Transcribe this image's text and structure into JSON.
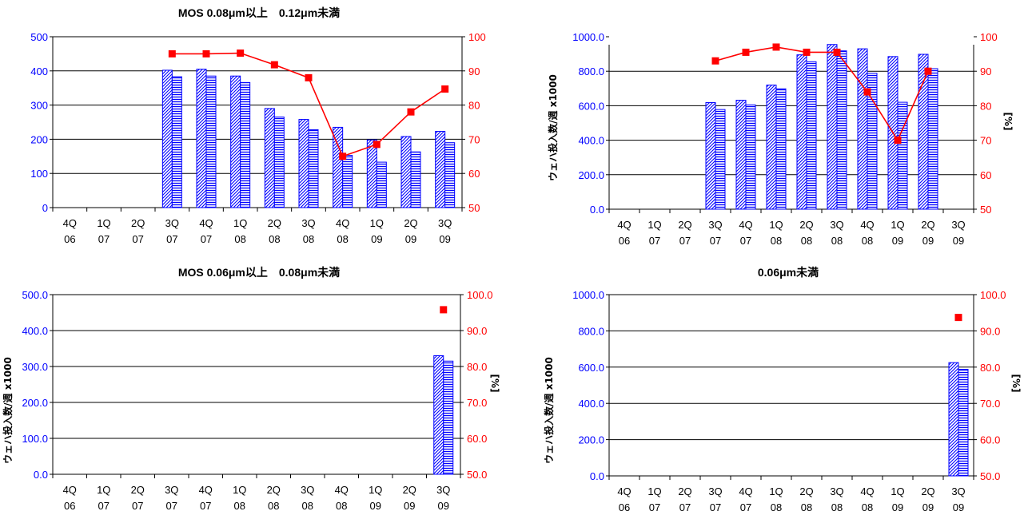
{
  "colors": {
    "bar": "#0000ff",
    "line": "#ff0000",
    "left_axis_text": "#0000ff",
    "right_axis_text": "#ff0000"
  },
  "chart_data": [
    {
      "type": "bar",
      "title": "MOS 0.08μm以上　0.12μm未満",
      "categories": [
        [
          "4Q",
          "06"
        ],
        [
          "1Q",
          "07"
        ],
        [
          "2Q",
          "07"
        ],
        [
          "3Q",
          "07"
        ],
        [
          "4Q",
          "07"
        ],
        [
          "1Q",
          "08"
        ],
        [
          "2Q",
          "08"
        ],
        [
          "3Q",
          "08"
        ],
        [
          "4Q",
          "08"
        ],
        [
          "1Q",
          "09"
        ],
        [
          "2Q",
          "09"
        ],
        [
          "3Q",
          "09"
        ]
      ],
      "series": [
        {
          "kind": "bar",
          "pattern": "diag",
          "values": [
            null,
            null,
            null,
            402,
            405,
            385,
            290,
            258,
            235,
            198,
            208,
            223
          ]
        },
        {
          "kind": "bar",
          "pattern": "horiz",
          "values": [
            null,
            null,
            null,
            383,
            385,
            366,
            265,
            228,
            153,
            133,
            163,
            190
          ]
        },
        {
          "kind": "line",
          "axis": "right",
          "values": [
            null,
            null,
            null,
            95,
            95,
            95.2,
            91.8,
            88,
            65,
            68.5,
            78,
            84.7
          ]
        }
      ],
      "ylabel": "",
      "y2label": "",
      "ylim": [
        0,
        500
      ],
      "y_ticks": [
        "0",
        "100",
        "200",
        "300",
        "400",
        "500"
      ],
      "y2lim": [
        50,
        100
      ],
      "y2_ticks": [
        "50",
        "60",
        "70",
        "80",
        "90",
        "100"
      ],
      "grid": true
    },
    {
      "type": "bar",
      "title": "",
      "categories": [
        [
          "4Q",
          "06"
        ],
        [
          "1Q",
          "07"
        ],
        [
          "2Q",
          "07"
        ],
        [
          "3Q",
          "07"
        ],
        [
          "4Q",
          "07"
        ],
        [
          "1Q",
          "08"
        ],
        [
          "2Q",
          "08"
        ],
        [
          "3Q",
          "08"
        ],
        [
          "4Q",
          "08"
        ],
        [
          "1Q",
          "09"
        ],
        [
          "2Q",
          "09"
        ],
        [
          "3Q",
          "09"
        ]
      ],
      "series": [
        {
          "kind": "bar",
          "pattern": "diag",
          "values": [
            null,
            null,
            null,
            618,
            632,
            720,
            895,
            955,
            930,
            885,
            898,
            null
          ]
        },
        {
          "kind": "bar",
          "pattern": "horiz",
          "values": [
            null,
            null,
            null,
            578,
            605,
            698,
            855,
            918,
            788,
            620,
            815,
            null
          ]
        },
        {
          "kind": "line",
          "axis": "right",
          "values": [
            null,
            null,
            null,
            93,
            95.5,
            97,
            95.5,
            95.5,
            84,
            70,
            90,
            null
          ]
        }
      ],
      "ylabel": "ウェハ投入数/週 x1000",
      "y2label": "[%]",
      "ylim": [
        0,
        1000
      ],
      "y_ticks": [
        "0.0",
        "200.0",
        "400.0",
        "600.0",
        "800.0",
        "1000.0"
      ],
      "y2lim": [
        50,
        100
      ],
      "y2_ticks": [
        "50",
        "60",
        "70",
        "80",
        "90",
        "100"
      ],
      "grid": true,
      "clip_top": 56
    },
    {
      "type": "bar",
      "title": "MOS 0.06μm以上　0.08μm未満",
      "categories": [
        [
          "4Q",
          "06"
        ],
        [
          "1Q",
          "07"
        ],
        [
          "2Q",
          "07"
        ],
        [
          "3Q",
          "07"
        ],
        [
          "4Q",
          "07"
        ],
        [
          "1Q",
          "08"
        ],
        [
          "2Q",
          "08"
        ],
        [
          "3Q",
          "08"
        ],
        [
          "4Q",
          "08"
        ],
        [
          "1Q",
          "09"
        ],
        [
          "2Q",
          "09"
        ],
        [
          "3Q",
          "09"
        ]
      ],
      "series": [
        {
          "kind": "bar",
          "pattern": "diag",
          "values": [
            null,
            null,
            null,
            null,
            null,
            null,
            null,
            null,
            null,
            null,
            null,
            330
          ]
        },
        {
          "kind": "bar",
          "pattern": "horiz",
          "values": [
            null,
            null,
            null,
            null,
            null,
            null,
            null,
            null,
            null,
            null,
            null,
            315
          ]
        },
        {
          "kind": "line",
          "axis": "right",
          "values": [
            null,
            null,
            null,
            null,
            null,
            null,
            null,
            null,
            null,
            null,
            null,
            95.8
          ]
        }
      ],
      "ylabel": "ウェハ投入数/週 x1000",
      "y2label": "[%]",
      "ylim": [
        0,
        500
      ],
      "y_ticks": [
        "0.0",
        "100.0",
        "200.0",
        "300.0",
        "400.0",
        "500.0"
      ],
      "y2lim": [
        50,
        100
      ],
      "y2_ticks": [
        "50.0",
        "60.0",
        "70.0",
        "80.0",
        "90.0",
        "100.0"
      ],
      "grid": true
    },
    {
      "type": "bar",
      "title": "0.06μm未満",
      "categories": [
        [
          "4Q",
          "06"
        ],
        [
          "1Q",
          "07"
        ],
        [
          "2Q",
          "07"
        ],
        [
          "3Q",
          "07"
        ],
        [
          "4Q",
          "07"
        ],
        [
          "1Q",
          "08"
        ],
        [
          "2Q",
          "08"
        ],
        [
          "3Q",
          "08"
        ],
        [
          "4Q",
          "08"
        ],
        [
          "1Q",
          "09"
        ],
        [
          "2Q",
          "09"
        ],
        [
          "3Q",
          "09"
        ]
      ],
      "series": [
        {
          "kind": "bar",
          "pattern": "diag",
          "values": [
            null,
            null,
            null,
            null,
            null,
            null,
            null,
            null,
            null,
            null,
            null,
            625
          ]
        },
        {
          "kind": "bar",
          "pattern": "horiz",
          "values": [
            null,
            null,
            null,
            null,
            null,
            null,
            null,
            null,
            null,
            null,
            null,
            588
          ]
        },
        {
          "kind": "line",
          "axis": "right",
          "values": [
            null,
            null,
            null,
            null,
            null,
            null,
            null,
            null,
            null,
            null,
            null,
            93.7
          ]
        }
      ],
      "ylabel": "ウェハ投入数/週 x1000",
      "y2label": "[%]",
      "ylim": [
        0,
        1000
      ],
      "y_ticks": [
        "0.0",
        "200.0",
        "400.0",
        "600.0",
        "800.0",
        "1000.0"
      ],
      "y2lim": [
        50,
        100
      ],
      "y2_ticks": [
        "50.0",
        "60.0",
        "70.0",
        "80.0",
        "90.0",
        "100.0"
      ],
      "grid": true
    }
  ]
}
